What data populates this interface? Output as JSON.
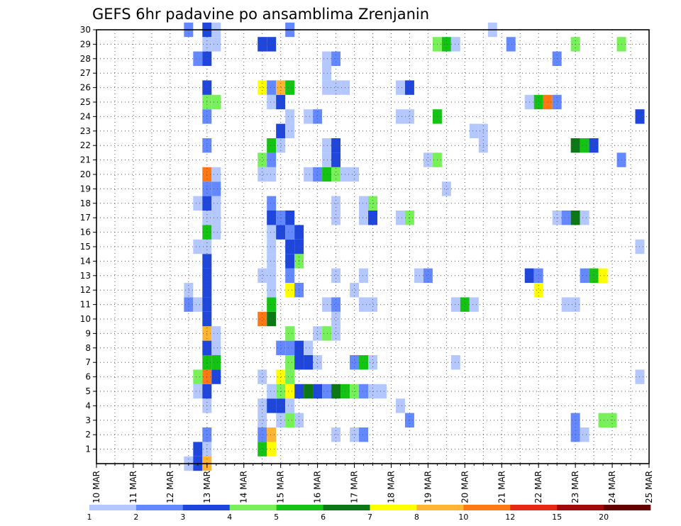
{
  "chart_data": {
    "type": "heatmap",
    "title": "GEFS 6hr padavine po ansamblima Zrenjanin",
    "x_tick_labels": [
      "10 MAR",
      "11 MAR",
      "12 MAR",
      "13 MAR",
      "14 MAR",
      "15 MAR",
      "16 MAR",
      "17 MAR",
      "18 MAR",
      "19 MAR",
      "20 MAR",
      "21 MAR",
      "22 MAR",
      "23 MAR",
      "24 MAR",
      "25 MAR"
    ],
    "xlim_days": [
      10,
      25
    ],
    "y_tick_labels": [
      "1",
      "2",
      "3",
      "4",
      "5",
      "6",
      "7",
      "8",
      "9",
      "10",
      "11",
      "12",
      "13",
      "14",
      "15",
      "16",
      "17",
      "18",
      "19",
      "20",
      "21",
      "22",
      "23",
      "24",
      "25",
      "26",
      "27",
      "28",
      "29",
      "30"
    ],
    "ylim": [
      0,
      30
    ],
    "grid": true,
    "colorbar": {
      "labels": [
        "1",
        "2",
        "3",
        "4",
        "5",
        "6",
        "7",
        "8",
        "10",
        "12",
        "15",
        "20"
      ],
      "colors": [
        "#b4c8ff",
        "#6488ff",
        "#1e46dc",
        "#78f05a",
        "#14c314",
        "#0a7814",
        "#ffff00",
        "#ffb432",
        "#ff7814",
        "#e62814",
        "#a00a0a",
        "#640000"
      ]
    },
    "cells": [
      {
        "day": 12.5,
        "member": 0,
        "level": 1
      },
      {
        "day": 12.75,
        "member": 0,
        "level": 3
      },
      {
        "day": 13.0,
        "member": 0,
        "level": 8
      },
      {
        "day": 12.75,
        "member": 1,
        "level": 3
      },
      {
        "day": 13.0,
        "member": 1,
        "level": 1
      },
      {
        "day": 14.5,
        "member": 1,
        "level": 5
      },
      {
        "day": 14.75,
        "member": 1,
        "level": 7
      },
      {
        "day": 13.0,
        "member": 2,
        "level": 2
      },
      {
        "day": 14.5,
        "member": 2,
        "level": 2
      },
      {
        "day": 14.75,
        "member": 2,
        "level": 8
      },
      {
        "day": 16.5,
        "member": 2,
        "level": 1
      },
      {
        "day": 17.0,
        "member": 2,
        "level": 1
      },
      {
        "day": 17.25,
        "member": 2,
        "level": 2
      },
      {
        "day": 23.0,
        "member": 2,
        "level": 2
      },
      {
        "day": 23.25,
        "member": 2,
        "level": 1
      },
      {
        "day": 14.5,
        "member": 3,
        "level": 1
      },
      {
        "day": 15.0,
        "member": 3,
        "level": 1
      },
      {
        "day": 15.25,
        "member": 3,
        "level": 4
      },
      {
        "day": 15.5,
        "member": 3,
        "level": 1
      },
      {
        "day": 18.5,
        "member": 3,
        "level": 2
      },
      {
        "day": 23.0,
        "member": 3,
        "level": 2
      },
      {
        "day": 23.75,
        "member": 3,
        "level": 4
      },
      {
        "day": 24.0,
        "member": 3,
        "level": 4
      },
      {
        "day": 13.0,
        "member": 4,
        "level": 1
      },
      {
        "day": 14.5,
        "member": 4,
        "level": 1
      },
      {
        "day": 14.75,
        "member": 4,
        "level": 3
      },
      {
        "day": 15.0,
        "member": 4,
        "level": 3
      },
      {
        "day": 15.25,
        "member": 4,
        "level": 1
      },
      {
        "day": 18.25,
        "member": 4,
        "level": 1
      },
      {
        "day": 12.75,
        "member": 5,
        "level": 1
      },
      {
        "day": 13.0,
        "member": 5,
        "level": 3
      },
      {
        "day": 14.75,
        "member": 5,
        "level": 1
      },
      {
        "day": 15.0,
        "member": 5,
        "level": 4
      },
      {
        "day": 15.25,
        "member": 5,
        "level": 7
      },
      {
        "day": 15.5,
        "member": 5,
        "level": 3
      },
      {
        "day": 15.75,
        "member": 5,
        "level": 6
      },
      {
        "day": 16.0,
        "member": 5,
        "level": 3
      },
      {
        "day": 16.25,
        "member": 5,
        "level": 2
      },
      {
        "day": 16.5,
        "member": 5,
        "level": 6
      },
      {
        "day": 16.75,
        "member": 5,
        "level": 5
      },
      {
        "day": 17.0,
        "member": 5,
        "level": 4
      },
      {
        "day": 17.25,
        "member": 5,
        "level": 2
      },
      {
        "day": 17.5,
        "member": 5,
        "level": 1
      },
      {
        "day": 17.75,
        "member": 5,
        "level": 1
      },
      {
        "day": 12.75,
        "member": 6,
        "level": 4
      },
      {
        "day": 13.0,
        "member": 6,
        "level": 9
      },
      {
        "day": 13.25,
        "member": 6,
        "level": 3
      },
      {
        "day": 14.5,
        "member": 6,
        "level": 1
      },
      {
        "day": 15.0,
        "member": 6,
        "level": 7
      },
      {
        "day": 15.25,
        "member": 6,
        "level": 4
      },
      {
        "day": 24.75,
        "member": 6,
        "level": 1
      },
      {
        "day": 13.0,
        "member": 7,
        "level": 5
      },
      {
        "day": 13.25,
        "member": 7,
        "level": 5
      },
      {
        "day": 15.25,
        "member": 7,
        "level": 4
      },
      {
        "day": 15.5,
        "member": 7,
        "level": 3
      },
      {
        "day": 15.75,
        "member": 7,
        "level": 3
      },
      {
        "day": 16.0,
        "member": 7,
        "level": 1
      },
      {
        "day": 17.0,
        "member": 7,
        "level": 2
      },
      {
        "day": 17.25,
        "member": 7,
        "level": 5
      },
      {
        "day": 17.5,
        "member": 7,
        "level": 1
      },
      {
        "day": 19.75,
        "member": 7,
        "level": 1
      },
      {
        "day": 13.0,
        "member": 8,
        "level": 3
      },
      {
        "day": 13.25,
        "member": 8,
        "level": 1
      },
      {
        "day": 15.0,
        "member": 8,
        "level": 2
      },
      {
        "day": 15.25,
        "member": 8,
        "level": 2
      },
      {
        "day": 15.5,
        "member": 8,
        "level": 3
      },
      {
        "day": 15.75,
        "member": 8,
        "level": 1
      },
      {
        "day": 13.0,
        "member": 9,
        "level": 8
      },
      {
        "day": 13.25,
        "member": 9,
        "level": 1
      },
      {
        "day": 15.25,
        "member": 9,
        "level": 4
      },
      {
        "day": 16.0,
        "member": 9,
        "level": 1
      },
      {
        "day": 16.25,
        "member": 9,
        "level": 4
      },
      {
        "day": 16.5,
        "member": 9,
        "level": 1
      },
      {
        "day": 13.0,
        "member": 10,
        "level": 3
      },
      {
        "day": 14.5,
        "member": 10,
        "level": 9
      },
      {
        "day": 14.75,
        "member": 10,
        "level": 6
      },
      {
        "day": 16.5,
        "member": 10,
        "level": 1
      },
      {
        "day": 12.5,
        "member": 11,
        "level": 2
      },
      {
        "day": 12.75,
        "member": 11,
        "level": 1
      },
      {
        "day": 13.0,
        "member": 11,
        "level": 3
      },
      {
        "day": 14.75,
        "member": 11,
        "level": 5
      },
      {
        "day": 16.25,
        "member": 11,
        "level": 1
      },
      {
        "day": 16.5,
        "member": 11,
        "level": 2
      },
      {
        "day": 17.25,
        "member": 11,
        "level": 1
      },
      {
        "day": 17.5,
        "member": 11,
        "level": 1
      },
      {
        "day": 19.75,
        "member": 11,
        "level": 1
      },
      {
        "day": 20.0,
        "member": 11,
        "level": 5
      },
      {
        "day": 20.25,
        "member": 11,
        "level": 1
      },
      {
        "day": 22.75,
        "member": 11,
        "level": 1
      },
      {
        "day": 23.0,
        "member": 11,
        "level": 1
      },
      {
        "day": 12.5,
        "member": 12,
        "level": 1
      },
      {
        "day": 13.0,
        "member": 12,
        "level": 3
      },
      {
        "day": 14.75,
        "member": 12,
        "level": 1
      },
      {
        "day": 15.25,
        "member": 12,
        "level": 7
      },
      {
        "day": 15.5,
        "member": 12,
        "level": 2
      },
      {
        "day": 17.0,
        "member": 12,
        "level": 1
      },
      {
        "day": 22.0,
        "member": 12,
        "level": 7
      },
      {
        "day": 13.0,
        "member": 13,
        "level": 3
      },
      {
        "day": 14.5,
        "member": 13,
        "level": 1
      },
      {
        "day": 14.75,
        "member": 13,
        "level": 1
      },
      {
        "day": 15.25,
        "member": 13,
        "level": 2
      },
      {
        "day": 16.5,
        "member": 13,
        "level": 1
      },
      {
        "day": 17.25,
        "member": 13,
        "level": 1
      },
      {
        "day": 18.75,
        "member": 13,
        "level": 1
      },
      {
        "day": 19.0,
        "member": 13,
        "level": 2
      },
      {
        "day": 21.75,
        "member": 13,
        "level": 3
      },
      {
        "day": 22.0,
        "member": 13,
        "level": 2
      },
      {
        "day": 23.25,
        "member": 13,
        "level": 2
      },
      {
        "day": 23.5,
        "member": 13,
        "level": 5
      },
      {
        "day": 23.75,
        "member": 13,
        "level": 7
      },
      {
        "day": 13.0,
        "member": 14,
        "level": 3
      },
      {
        "day": 14.75,
        "member": 14,
        "level": 1
      },
      {
        "day": 15.25,
        "member": 14,
        "level": 3
      },
      {
        "day": 15.5,
        "member": 14,
        "level": 4
      },
      {
        "day": 12.75,
        "member": 15,
        "level": 1
      },
      {
        "day": 13.0,
        "member": 15,
        "level": 1
      },
      {
        "day": 14.75,
        "member": 15,
        "level": 1
      },
      {
        "day": 15.25,
        "member": 15,
        "level": 3
      },
      {
        "day": 15.5,
        "member": 15,
        "level": 3
      },
      {
        "day": 24.75,
        "member": 15,
        "level": 1
      },
      {
        "day": 13.0,
        "member": 16,
        "level": 5
      },
      {
        "day": 13.25,
        "member": 16,
        "level": 1
      },
      {
        "day": 14.75,
        "member": 16,
        "level": 1
      },
      {
        "day": 15.0,
        "member": 16,
        "level": 3
      },
      {
        "day": 15.25,
        "member": 16,
        "level": 2
      },
      {
        "day": 15.5,
        "member": 16,
        "level": 3
      },
      {
        "day": 13.0,
        "member": 17,
        "level": 1
      },
      {
        "day": 13.25,
        "member": 17,
        "level": 1
      },
      {
        "day": 14.75,
        "member": 17,
        "level": 3
      },
      {
        "day": 15.0,
        "member": 17,
        "level": 2
      },
      {
        "day": 15.25,
        "member": 17,
        "level": 3
      },
      {
        "day": 16.5,
        "member": 17,
        "level": 1
      },
      {
        "day": 17.25,
        "member": 17,
        "level": 1
      },
      {
        "day": 17.5,
        "member": 17,
        "level": 3
      },
      {
        "day": 18.25,
        "member": 17,
        "level": 1
      },
      {
        "day": 18.5,
        "member": 17,
        "level": 4
      },
      {
        "day": 22.5,
        "member": 17,
        "level": 1
      },
      {
        "day": 22.75,
        "member": 17,
        "level": 2
      },
      {
        "day": 23.0,
        "member": 17,
        "level": 6
      },
      {
        "day": 23.25,
        "member": 17,
        "level": 1
      },
      {
        "day": 12.75,
        "member": 18,
        "level": 1
      },
      {
        "day": 13.0,
        "member": 18,
        "level": 3
      },
      {
        "day": 13.25,
        "member": 18,
        "level": 1
      },
      {
        "day": 14.75,
        "member": 18,
        "level": 2
      },
      {
        "day": 16.5,
        "member": 18,
        "level": 1
      },
      {
        "day": 17.25,
        "member": 18,
        "level": 1
      },
      {
        "day": 17.5,
        "member": 18,
        "level": 4
      },
      {
        "day": 13.0,
        "member": 19,
        "level": 2
      },
      {
        "day": 13.25,
        "member": 19,
        "level": 2
      },
      {
        "day": 19.5,
        "member": 19,
        "level": 1
      },
      {
        "day": 13.0,
        "member": 20,
        "level": 9
      },
      {
        "day": 13.25,
        "member": 20,
        "level": 1
      },
      {
        "day": 14.5,
        "member": 20,
        "level": 1
      },
      {
        "day": 14.75,
        "member": 20,
        "level": 1
      },
      {
        "day": 15.75,
        "member": 20,
        "level": 1
      },
      {
        "day": 16.0,
        "member": 20,
        "level": 2
      },
      {
        "day": 16.25,
        "member": 20,
        "level": 5
      },
      {
        "day": 16.5,
        "member": 20,
        "level": 4
      },
      {
        "day": 16.75,
        "member": 20,
        "level": 1
      },
      {
        "day": 17.0,
        "member": 20,
        "level": 1
      },
      {
        "day": 14.5,
        "member": 21,
        "level": 4
      },
      {
        "day": 14.75,
        "member": 21,
        "level": 2
      },
      {
        "day": 16.25,
        "member": 21,
        "level": 1
      },
      {
        "day": 16.5,
        "member": 21,
        "level": 3
      },
      {
        "day": 19.0,
        "member": 21,
        "level": 1
      },
      {
        "day": 19.25,
        "member": 21,
        "level": 4
      },
      {
        "day": 24.25,
        "member": 21,
        "level": 2
      },
      {
        "day": 13.0,
        "member": 22,
        "level": 2
      },
      {
        "day": 14.75,
        "member": 22,
        "level": 5
      },
      {
        "day": 15.0,
        "member": 22,
        "level": 1
      },
      {
        "day": 16.25,
        "member": 22,
        "level": 1
      },
      {
        "day": 16.5,
        "member": 22,
        "level": 3
      },
      {
        "day": 20.5,
        "member": 22,
        "level": 1
      },
      {
        "day": 23.0,
        "member": 22,
        "level": 6
      },
      {
        "day": 23.25,
        "member": 22,
        "level": 5
      },
      {
        "day": 23.5,
        "member": 22,
        "level": 3
      },
      {
        "day": 15.0,
        "member": 23,
        "level": 3
      },
      {
        "day": 15.25,
        "member": 23,
        "level": 1
      },
      {
        "day": 20.25,
        "member": 23,
        "level": 1
      },
      {
        "day": 20.5,
        "member": 23,
        "level": 1
      },
      {
        "day": 13.0,
        "member": 24,
        "level": 2
      },
      {
        "day": 15.25,
        "member": 24,
        "level": 1
      },
      {
        "day": 15.75,
        "member": 24,
        "level": 1
      },
      {
        "day": 16.0,
        "member": 24,
        "level": 2
      },
      {
        "day": 18.25,
        "member": 24,
        "level": 1
      },
      {
        "day": 18.5,
        "member": 24,
        "level": 1
      },
      {
        "day": 19.25,
        "member": 24,
        "level": 5
      },
      {
        "day": 24.75,
        "member": 24,
        "level": 3
      },
      {
        "day": 13.0,
        "member": 25,
        "level": 4
      },
      {
        "day": 13.25,
        "member": 25,
        "level": 4
      },
      {
        "day": 14.75,
        "member": 25,
        "level": 1
      },
      {
        "day": 15.0,
        "member": 25,
        "level": 3
      },
      {
        "day": 21.75,
        "member": 25,
        "level": 1
      },
      {
        "day": 22.0,
        "member": 25,
        "level": 5
      },
      {
        "day": 22.25,
        "member": 25,
        "level": 9
      },
      {
        "day": 22.5,
        "member": 25,
        "level": 2
      },
      {
        "day": 13.0,
        "member": 26,
        "level": 3
      },
      {
        "day": 14.5,
        "member": 26,
        "level": 7
      },
      {
        "day": 14.75,
        "member": 26,
        "level": 2
      },
      {
        "day": 15.0,
        "member": 26,
        "level": 8
      },
      {
        "day": 15.25,
        "member": 26,
        "level": 5
      },
      {
        "day": 16.25,
        "member": 26,
        "level": 1
      },
      {
        "day": 16.5,
        "member": 26,
        "level": 1
      },
      {
        "day": 16.75,
        "member": 26,
        "level": 1
      },
      {
        "day": 18.25,
        "member": 26,
        "level": 1
      },
      {
        "day": 18.5,
        "member": 26,
        "level": 3
      },
      {
        "day": 16.25,
        "member": 27,
        "level": 1
      },
      {
        "day": 12.75,
        "member": 28,
        "level": 2
      },
      {
        "day": 13.0,
        "member": 28,
        "level": 3
      },
      {
        "day": 16.25,
        "member": 28,
        "level": 1
      },
      {
        "day": 16.5,
        "member": 28,
        "level": 2
      },
      {
        "day": 22.5,
        "member": 28,
        "level": 2
      },
      {
        "day": 13.0,
        "member": 29,
        "level": 1
      },
      {
        "day": 13.25,
        "member": 29,
        "level": 1
      },
      {
        "day": 14.5,
        "member": 29,
        "level": 3
      },
      {
        "day": 14.75,
        "member": 29,
        "level": 3
      },
      {
        "day": 19.25,
        "member": 29,
        "level": 4
      },
      {
        "day": 19.5,
        "member": 29,
        "level": 5
      },
      {
        "day": 19.75,
        "member": 29,
        "level": 1
      },
      {
        "day": 21.25,
        "member": 29,
        "level": 2
      },
      {
        "day": 23.0,
        "member": 29,
        "level": 4
      },
      {
        "day": 24.25,
        "member": 29,
        "level": 4
      },
      {
        "day": 12.5,
        "member": 30,
        "level": 2
      },
      {
        "day": 13.0,
        "member": 30,
        "level": 3
      },
      {
        "day": 13.25,
        "member": 30,
        "level": 1
      },
      {
        "day": 15.25,
        "member": 30,
        "level": 2
      },
      {
        "day": 20.75,
        "member": 30,
        "level": 1
      }
    ]
  }
}
